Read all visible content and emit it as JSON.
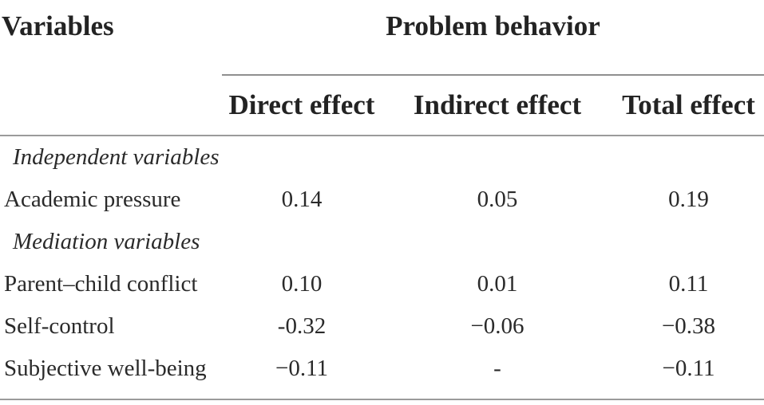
{
  "table": {
    "row_header": "Variables",
    "spanner_header": "Problem behavior",
    "effect_columns": [
      "Direct effect",
      "Indirect effect",
      "Total effect"
    ],
    "rows": [
      {
        "type": "section",
        "label": "Independent variables",
        "values": [
          "",
          "",
          ""
        ]
      },
      {
        "type": "data",
        "label": "Academic pressure",
        "values": [
          "0.14",
          "0.05",
          "0.19"
        ]
      },
      {
        "type": "section",
        "label": "Mediation variables",
        "values": [
          "",
          "",
          ""
        ]
      },
      {
        "type": "data",
        "label": "Parent–child conflict",
        "values": [
          "0.10",
          "0.01",
          "0.11"
        ]
      },
      {
        "type": "data",
        "label": "Self-control",
        "values": [
          "-0.32",
          "−0.06",
          "−0.38"
        ]
      },
      {
        "type": "data",
        "label": "Subjective well-being",
        "values": [
          "−0.11",
          "-",
          "−0.11"
        ]
      }
    ]
  },
  "colors": {
    "text": "#2a2a2a",
    "header_text": "#232323",
    "rule": "#9b9b9b",
    "background": "#ffffff"
  }
}
